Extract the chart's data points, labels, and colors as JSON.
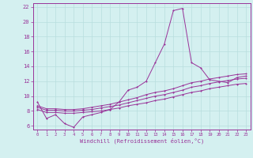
{
  "xlabel": "Windchill (Refroidissement éolien,°C)",
  "background_color": "#d4f0f0",
  "grid_color": "#b8dede",
  "line_color": "#993399",
  "xlim": [
    -0.5,
    23.5
  ],
  "ylim": [
    5.5,
    22.5
  ],
  "xticks": [
    0,
    1,
    2,
    3,
    4,
    5,
    6,
    7,
    8,
    9,
    10,
    11,
    12,
    13,
    14,
    15,
    16,
    17,
    18,
    19,
    20,
    21,
    22,
    23
  ],
  "yticks": [
    6,
    8,
    10,
    12,
    14,
    16,
    18,
    20,
    22
  ],
  "line1_y": [
    9.2,
    7.0,
    7.5,
    6.3,
    5.8,
    7.2,
    7.5,
    7.8,
    8.2,
    9.2,
    10.8,
    11.2,
    12.0,
    14.5,
    17.0,
    21.5,
    21.8,
    14.5,
    13.8,
    12.2,
    12.0,
    11.8,
    12.5,
    12.7
  ],
  "line2_y": [
    8.2,
    7.8,
    7.8,
    7.7,
    7.7,
    7.8,
    7.9,
    8.0,
    8.2,
    8.4,
    8.7,
    8.9,
    9.1,
    9.4,
    9.6,
    9.9,
    10.2,
    10.5,
    10.7,
    11.0,
    11.2,
    11.4,
    11.6,
    11.7
  ],
  "line3_y": [
    8.5,
    8.1,
    8.1,
    8.0,
    8.0,
    8.1,
    8.2,
    8.4,
    8.6,
    8.8,
    9.1,
    9.4,
    9.7,
    10.0,
    10.2,
    10.5,
    10.8,
    11.2,
    11.4,
    11.7,
    11.9,
    12.1,
    12.3,
    12.4
  ],
  "line4_y": [
    8.7,
    8.3,
    8.3,
    8.2,
    8.2,
    8.3,
    8.5,
    8.7,
    8.9,
    9.2,
    9.5,
    9.8,
    10.2,
    10.5,
    10.7,
    11.0,
    11.4,
    11.8,
    12.0,
    12.3,
    12.5,
    12.7,
    12.9,
    13.0
  ]
}
